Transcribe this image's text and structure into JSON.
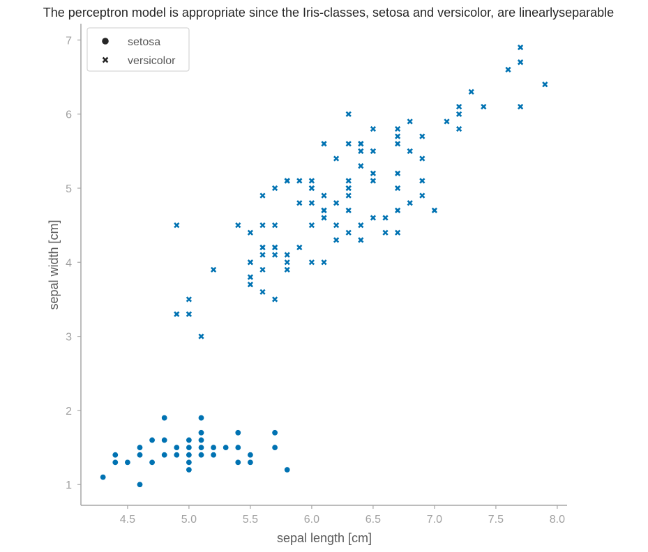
{
  "chart_data": {
    "type": "scatter",
    "title": "The perceptron model is appropriate since the Iris-classes, setosa and versicolor, are linearlyseparable",
    "xlabel": "sepal length [cm]",
    "ylabel": "sepal width [cm]",
    "xlim": [
      4.12,
      8.08
    ],
    "ylim": [
      0.72,
      7.22
    ],
    "xticks": [
      4.5,
      5.0,
      5.5,
      6.0,
      6.5,
      7.0,
      7.5,
      8.0
    ],
    "xtick_labels": [
      "4.5",
      "5.0",
      "5.5",
      "6.0",
      "6.5",
      "7.0",
      "7.5",
      "8.0"
    ],
    "yticks": [
      1,
      2,
      3,
      4,
      5,
      6,
      7
    ],
    "ytick_labels": [
      "1",
      "2",
      "3",
      "4",
      "5",
      "6",
      "7"
    ],
    "grid": false,
    "legend_position": "top-left",
    "color": "#0072b2",
    "axis_color": "#a0a0a0",
    "series": [
      {
        "name": "setosa",
        "marker": "circle",
        "x": [
          4.3,
          4.4,
          4.4,
          4.5,
          4.6,
          4.6,
          4.6,
          4.7,
          4.7,
          4.8,
          4.8,
          4.8,
          4.9,
          4.9,
          5.0,
          5.0,
          5.0,
          5.0,
          5.0,
          5.0,
          5.1,
          5.1,
          5.1,
          5.1,
          5.1,
          5.2,
          5.2,
          5.3,
          5.4,
          5.4,
          5.4,
          5.4,
          5.5,
          5.5,
          5.7,
          5.7,
          5.8
        ],
        "y": [
          1.1,
          1.4,
          1.3,
          1.3,
          1.5,
          1.4,
          1.0,
          1.6,
          1.3,
          1.9,
          1.6,
          1.4,
          1.5,
          1.4,
          1.6,
          1.5,
          1.4,
          1.3,
          1.2,
          1.4,
          1.9,
          1.7,
          1.6,
          1.5,
          1.4,
          1.5,
          1.4,
          1.5,
          1.7,
          1.5,
          1.3,
          1.5,
          1.4,
          1.3,
          1.7,
          1.5,
          1.2
        ]
      },
      {
        "name": "versicolor",
        "marker": "x",
        "x": [
          4.9,
          4.9,
          5.0,
          5.0,
          5.1,
          5.2,
          5.4,
          5.5,
          5.5,
          5.5,
          5.5,
          5.5,
          5.6,
          5.6,
          5.6,
          5.6,
          5.6,
          5.6,
          5.6,
          5.7,
          5.7,
          5.7,
          5.7,
          5.7,
          5.7,
          5.8,
          5.8,
          5.8,
          5.8,
          5.8,
          5.9,
          5.9,
          5.9,
          6.0,
          6.0,
          6.0,
          6.0,
          6.0,
          6.0,
          6.1,
          6.1,
          6.1,
          6.1,
          6.1,
          6.1,
          6.2,
          6.2,
          6.2,
          6.2,
          6.3,
          6.3,
          6.3,
          6.3,
          6.3,
          6.3,
          6.3,
          6.3,
          6.4,
          6.4,
          6.4,
          6.4,
          6.4,
          6.4,
          6.5,
          6.5,
          6.5,
          6.5,
          6.5,
          6.6,
          6.6,
          6.7,
          6.7,
          6.7,
          6.7,
          6.7,
          6.7,
          6.7,
          6.8,
          6.8,
          6.8,
          6.9,
          6.9,
          6.9,
          6.9,
          7.0,
          7.1,
          7.2,
          7.2,
          7.2,
          7.3,
          7.4,
          7.6,
          7.7,
          7.7,
          7.7,
          7.7,
          7.9
        ],
        "y": [
          4.5,
          3.3,
          3.5,
          3.3,
          3.0,
          3.9,
          4.5,
          4.4,
          4.0,
          3.8,
          3.7,
          4.0,
          4.9,
          4.5,
          4.2,
          4.1,
          3.9,
          3.6,
          4.2,
          5.0,
          4.5,
          4.2,
          4.1,
          3.5,
          4.2,
          5.1,
          4.1,
          4.0,
          3.9,
          5.1,
          5.1,
          4.8,
          4.2,
          5.1,
          5.0,
          4.8,
          4.5,
          4.0,
          5.0,
          5.6,
          4.9,
          4.7,
          4.6,
          4.0,
          4.7,
          5.4,
          4.8,
          4.5,
          4.3,
          6.0,
          5.6,
          5.1,
          5.0,
          4.9,
          4.7,
          4.4,
          5.0,
          5.6,
          5.5,
          5.3,
          4.5,
          4.3,
          5.6,
          5.8,
          5.5,
          5.2,
          5.1,
          4.6,
          4.6,
          4.4,
          5.8,
          5.7,
          5.6,
          5.2,
          5.0,
          4.7,
          4.4,
          5.9,
          5.5,
          4.8,
          5.7,
          5.4,
          5.1,
          4.9,
          4.7,
          5.9,
          6.1,
          6.0,
          5.8,
          6.3,
          6.1,
          6.6,
          6.9,
          6.7,
          6.1,
          6.7,
          6.4
        ]
      }
    ]
  }
}
